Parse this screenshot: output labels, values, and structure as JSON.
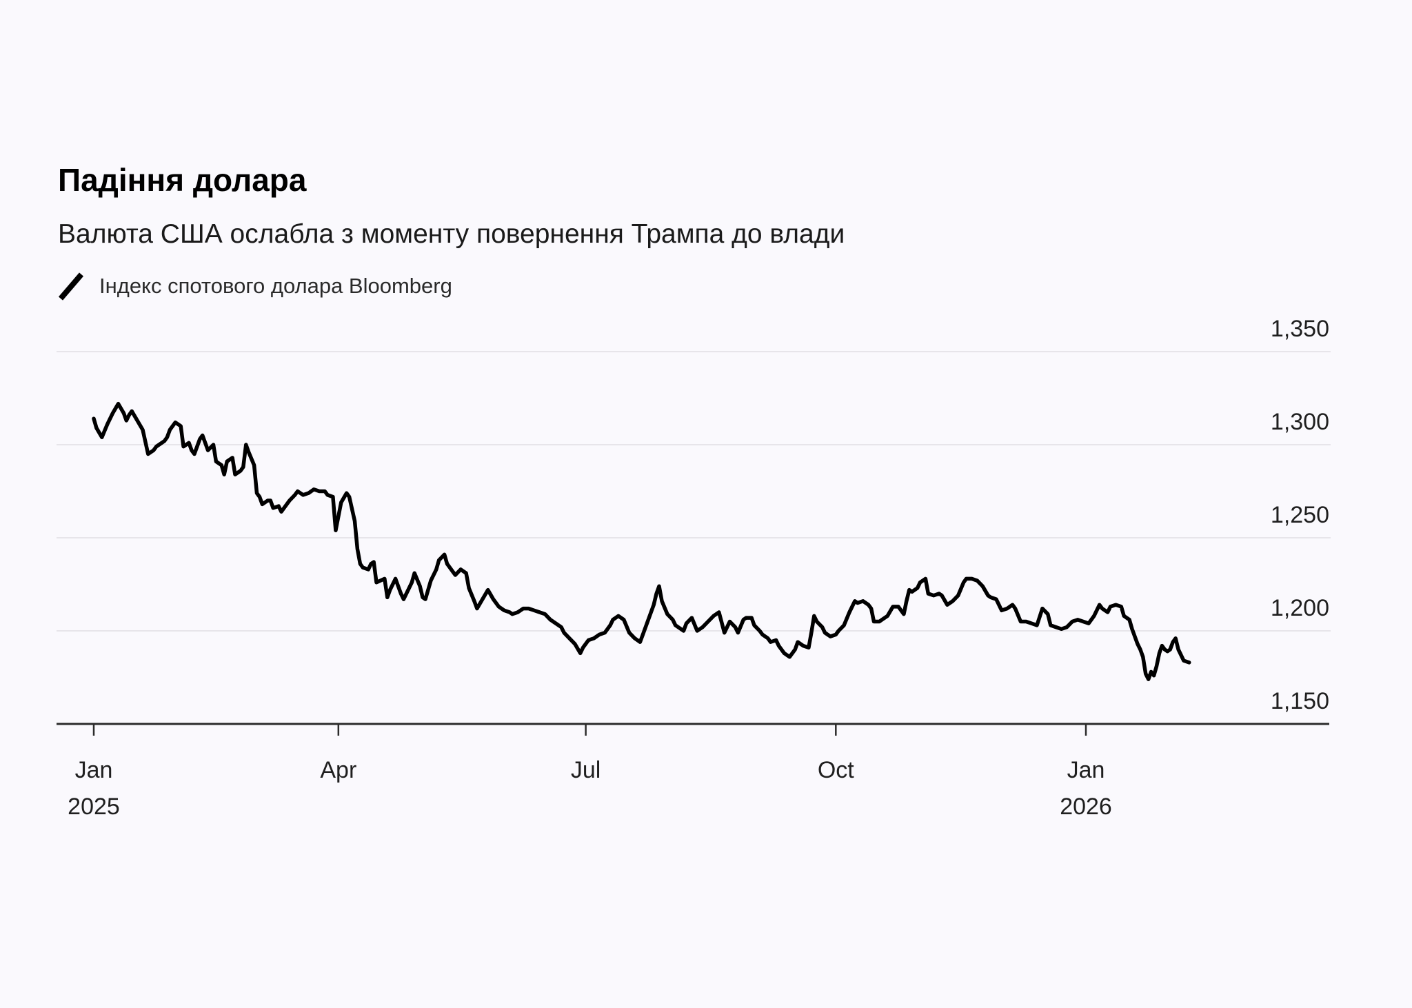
{
  "header": {
    "title": "Падіння долара",
    "subtitle": "Валюта США ослабла з моменту повернення Трампа до влади"
  },
  "legend": {
    "marker": "slash-icon",
    "series_label": "Індекс спотового долара Bloomberg"
  },
  "chart_data": {
    "type": "line",
    "title": "Падіння долара",
    "series_name": "Індекс спотового долара Bloomberg",
    "x_unit": "days since 2025-01-01",
    "x_range_days": [
      0,
      410
    ],
    "ylim": [
      1150,
      1350
    ],
    "grid": "horizontal",
    "legend_position": "top-left",
    "line_color": "#000000",
    "grid_color": "#e7e5ea",
    "axis_color": "#2b2b2b",
    "label_color": "#1f1f1f",
    "background_color": "#faf9fd",
    "y_ticks": [
      {
        "value": 1350,
        "label": "1,350"
      },
      {
        "value": 1300,
        "label": "1,300"
      },
      {
        "value": 1250,
        "label": "1,250"
      },
      {
        "value": 1200,
        "label": "1,200"
      },
      {
        "value": 1150,
        "label": "1,150"
      }
    ],
    "x_ticks": [
      {
        "day": 0,
        "label": "Jan",
        "year": "2025"
      },
      {
        "day": 90,
        "label": "Apr",
        "year": ""
      },
      {
        "day": 181,
        "label": "Jul",
        "year": ""
      },
      {
        "day": 273,
        "label": "Oct",
        "year": ""
      },
      {
        "day": 365,
        "label": "Jan",
        "year": "2026"
      }
    ],
    "points": [
      [
        0,
        1314
      ],
      [
        1,
        1309
      ],
      [
        3,
        1304
      ],
      [
        5,
        1311
      ],
      [
        7,
        1317
      ],
      [
        9,
        1322
      ],
      [
        11,
        1317
      ],
      [
        12,
        1313
      ],
      [
        13,
        1316
      ],
      [
        14,
        1318
      ],
      [
        16,
        1313
      ],
      [
        18,
        1308
      ],
      [
        20,
        1295
      ],
      [
        22,
        1297
      ],
      [
        23,
        1299
      ],
      [
        25,
        1301
      ],
      [
        26,
        1302
      ],
      [
        27,
        1304
      ],
      [
        28,
        1308
      ],
      [
        30,
        1312
      ],
      [
        32,
        1310
      ],
      [
        33,
        1299
      ],
      [
        35,
        1301
      ],
      [
        36,
        1297
      ],
      [
        37,
        1295
      ],
      [
        39,
        1303
      ],
      [
        40,
        1305
      ],
      [
        42,
        1297
      ],
      [
        44,
        1300
      ],
      [
        45,
        1291
      ],
      [
        47,
        1289
      ],
      [
        48,
        1284
      ],
      [
        49,
        1291
      ],
      [
        51,
        1293
      ],
      [
        52,
        1284
      ],
      [
        54,
        1286
      ],
      [
        55,
        1288
      ],
      [
        56,
        1300
      ],
      [
        57,
        1296
      ],
      [
        59,
        1289
      ],
      [
        60,
        1274
      ],
      [
        61,
        1272
      ],
      [
        62,
        1268
      ],
      [
        64,
        1270
      ],
      [
        65,
        1270
      ],
      [
        66,
        1266
      ],
      [
        68,
        1267
      ],
      [
        69,
        1264
      ],
      [
        70,
        1266
      ],
      [
        72,
        1270
      ],
      [
        74,
        1273
      ],
      [
        75,
        1275
      ],
      [
        77,
        1273
      ],
      [
        79,
        1274
      ],
      [
        81,
        1276
      ],
      [
        83,
        1275
      ],
      [
        85,
        1275
      ],
      [
        86,
        1273
      ],
      [
        88,
        1272
      ],
      [
        89,
        1254
      ],
      [
        91,
        1269
      ],
      [
        93,
        1274
      ],
      [
        94,
        1272
      ],
      [
        96,
        1259
      ],
      [
        97,
        1244
      ],
      [
        98,
        1236
      ],
      [
        99,
        1234
      ],
      [
        101,
        1233
      ],
      [
        102,
        1236
      ],
      [
        103,
        1237
      ],
      [
        104,
        1226
      ],
      [
        107,
        1228
      ],
      [
        108,
        1218
      ],
      [
        109,
        1222
      ],
      [
        111,
        1228
      ],
      [
        113,
        1220
      ],
      [
        114,
        1217
      ],
      [
        115,
        1220
      ],
      [
        117,
        1226
      ],
      [
        118,
        1231
      ],
      [
        120,
        1224
      ],
      [
        121,
        1218
      ],
      [
        122,
        1217
      ],
      [
        124,
        1227
      ],
      [
        126,
        1233
      ],
      [
        127,
        1238
      ],
      [
        129,
        1241
      ],
      [
        130,
        1236
      ],
      [
        132,
        1232
      ],
      [
        133,
        1230
      ],
      [
        135,
        1233
      ],
      [
        137,
        1231
      ],
      [
        138,
        1223
      ],
      [
        140,
        1216
      ],
      [
        141,
        1212
      ],
      [
        143,
        1217
      ],
      [
        145,
        1222
      ],
      [
        147,
        1217
      ],
      [
        149,
        1213
      ],
      [
        151,
        1211
      ],
      [
        153,
        1210
      ],
      [
        154,
        1209
      ],
      [
        156,
        1210
      ],
      [
        158,
        1212
      ],
      [
        160,
        1212
      ],
      [
        162,
        1211
      ],
      [
        164,
        1210
      ],
      [
        166,
        1209
      ],
      [
        168,
        1206
      ],
      [
        170,
        1204
      ],
      [
        172,
        1202
      ],
      [
        173,
        1199
      ],
      [
        175,
        1196
      ],
      [
        177,
        1193
      ],
      [
        179,
        1188
      ],
      [
        180,
        1191
      ],
      [
        182,
        1195
      ],
      [
        184,
        1196
      ],
      [
        186,
        1198
      ],
      [
        188,
        1199
      ],
      [
        190,
        1203
      ],
      [
        191,
        1206
      ],
      [
        193,
        1208
      ],
      [
        195,
        1206
      ],
      [
        197,
        1199
      ],
      [
        199,
        1196
      ],
      [
        201,
        1194
      ],
      [
        202,
        1198
      ],
      [
        204,
        1206
      ],
      [
        206,
        1214
      ],
      [
        207,
        1220
      ],
      [
        208,
        1224
      ],
      [
        209,
        1216
      ],
      [
        211,
        1209
      ],
      [
        213,
        1206
      ],
      [
        214,
        1203
      ],
      [
        217,
        1200
      ],
      [
        218,
        1204
      ],
      [
        220,
        1207
      ],
      [
        222,
        1200
      ],
      [
        224,
        1202
      ],
      [
        226,
        1205
      ],
      [
        228,
        1208
      ],
      [
        230,
        1210
      ],
      [
        232,
        1199
      ],
      [
        233,
        1202
      ],
      [
        234,
        1205
      ],
      [
        236,
        1202
      ],
      [
        237,
        1199
      ],
      [
        239,
        1206
      ],
      [
        240,
        1207
      ],
      [
        242,
        1207
      ],
      [
        243,
        1203
      ],
      [
        245,
        1200
      ],
      [
        246,
        1198
      ],
      [
        248,
        1196
      ],
      [
        249,
        1194
      ],
      [
        251,
        1195
      ],
      [
        252,
        1192
      ],
      [
        254,
        1188
      ],
      [
        256,
        1186
      ],
      [
        258,
        1190
      ],
      [
        259,
        1194
      ],
      [
        261,
        1192
      ],
      [
        263,
        1191
      ],
      [
        264,
        1199
      ],
      [
        265,
        1208
      ],
      [
        266,
        1205
      ],
      [
        268,
        1202
      ],
      [
        269,
        1199
      ],
      [
        271,
        1197
      ],
      [
        273,
        1198
      ],
      [
        274,
        1200
      ],
      [
        276,
        1203
      ],
      [
        278,
        1210
      ],
      [
        280,
        1216
      ],
      [
        281,
        1215
      ],
      [
        283,
        1216
      ],
      [
        285,
        1214
      ],
      [
        286,
        1212
      ],
      [
        287,
        1205
      ],
      [
        289,
        1205
      ],
      [
        290,
        1206
      ],
      [
        292,
        1208
      ],
      [
        294,
        1213
      ],
      [
        296,
        1213
      ],
      [
        297,
        1211
      ],
      [
        298,
        1209
      ],
      [
        299,
        1216
      ],
      [
        300,
        1222
      ],
      [
        301,
        1221
      ],
      [
        303,
        1223
      ],
      [
        304,
        1226
      ],
      [
        306,
        1228
      ],
      [
        307,
        1220
      ],
      [
        309,
        1219
      ],
      [
        311,
        1220
      ],
      [
        312,
        1219
      ],
      [
        314,
        1214
      ],
      [
        316,
        1216
      ],
      [
        318,
        1219
      ],
      [
        320,
        1226
      ],
      [
        321,
        1228
      ],
      [
        323,
        1228
      ],
      [
        325,
        1227
      ],
      [
        327,
        1224
      ],
      [
        329,
        1219
      ],
      [
        330,
        1218
      ],
      [
        332,
        1217
      ],
      [
        334,
        1211
      ],
      [
        336,
        1212
      ],
      [
        338,
        1214
      ],
      [
        339,
        1212
      ],
      [
        341,
        1205
      ],
      [
        343,
        1205
      ],
      [
        345,
        1204
      ],
      [
        347,
        1203
      ],
      [
        349,
        1212
      ],
      [
        351,
        1209
      ],
      [
        352,
        1203
      ],
      [
        354,
        1202
      ],
      [
        356,
        1201
      ],
      [
        358,
        1202
      ],
      [
        360,
        1205
      ],
      [
        362,
        1206
      ],
      [
        364,
        1205
      ],
      [
        366,
        1204
      ],
      [
        368,
        1208
      ],
      [
        370,
        1214
      ],
      [
        371,
        1212
      ],
      [
        373,
        1210
      ],
      [
        374,
        1213
      ],
      [
        376,
        1214
      ],
      [
        378,
        1213
      ],
      [
        379,
        1208
      ],
      [
        381,
        1206
      ],
      [
        382,
        1201
      ],
      [
        384,
        1193
      ],
      [
        385,
        1190
      ],
      [
        386,
        1186
      ],
      [
        387,
        1177
      ],
      [
        388,
        1174
      ],
      [
        389,
        1178
      ],
      [
        390,
        1176
      ],
      [
        391,
        1181
      ],
      [
        392,
        1188
      ],
      [
        393,
        1192
      ],
      [
        394,
        1190
      ],
      [
        395,
        1189
      ],
      [
        396,
        1190
      ],
      [
        397,
        1194
      ],
      [
        398,
        1196
      ],
      [
        399,
        1190
      ],
      [
        400,
        1187
      ],
      [
        401,
        1184
      ],
      [
        403,
        1183
      ]
    ]
  }
}
